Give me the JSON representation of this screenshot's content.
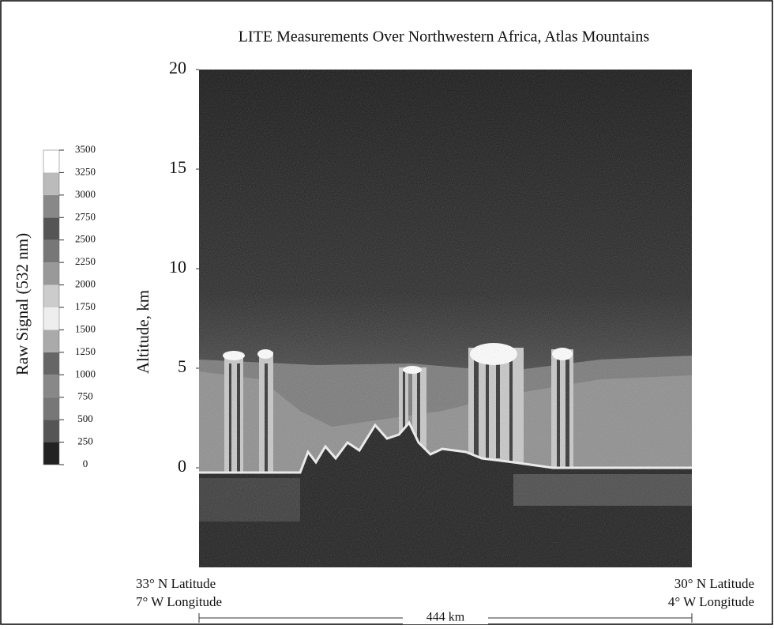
{
  "chart_data": {
    "type": "heatmap",
    "title": "LITE Measurements Over Northwestern Africa, Atlas Mountains",
    "ylabel": "Altitude, km",
    "ylim": [
      -5,
      20
    ],
    "yticks": [
      0,
      5,
      10,
      15,
      20
    ],
    "x_start_labels": [
      "33° N Latitude",
      "7° W Longitude"
    ],
    "x_end_labels": [
      "30° N Latitude",
      "4° W Longitude"
    ],
    "distance_label": "444 km",
    "colorbar": {
      "label": "Raw Signal (532 nm)",
      "lim": [
        0,
        3500
      ],
      "ticks": [
        0,
        250,
        500,
        750,
        1000,
        1250,
        1500,
        1750,
        2000,
        2250,
        2500,
        2750,
        3000,
        3250,
        3500
      ],
      "colors": [
        "#222222",
        "#555555",
        "#777777",
        "#888888",
        "#666666",
        "#aaaaaa",
        "#eeeeee",
        "#cccccc",
        "#999999",
        "#777777",
        "#555555",
        "#888888",
        "#bbbbbb",
        "#ffffff"
      ]
    }
  }
}
